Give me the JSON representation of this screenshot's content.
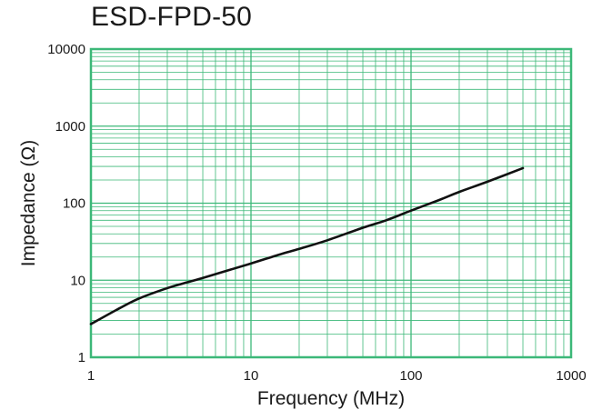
{
  "chart_data": {
    "type": "line",
    "title": "ESD-FPD-50",
    "xlabel": "Frequency (MHz)",
    "ylabel": "Impedance (Ω)",
    "x_scale": "log",
    "y_scale": "log",
    "xlim": [
      1,
      1000
    ],
    "ylim": [
      1,
      10000
    ],
    "x_ticks": [
      1,
      10,
      100,
      1000
    ],
    "x_tick_labels": [
      "1",
      "10",
      "100",
      "1000"
    ],
    "y_ticks": [
      1,
      10,
      100,
      1000,
      10000
    ],
    "y_tick_labels": [
      "1",
      "10",
      "100",
      "1000",
      "10000"
    ],
    "grid": true,
    "colors": {
      "grid": "#3cb878",
      "line": "#111111",
      "text": "#1a1a1a"
    },
    "series": [
      {
        "x": [
          1,
          1.5,
          2,
          3,
          4,
          5,
          7,
          10,
          15,
          20,
          30,
          50,
          70,
          100,
          150,
          200,
          300,
          500
        ],
        "y": [
          2.7,
          4.3,
          5.8,
          7.9,
          9.4,
          10.7,
          13.2,
          16.5,
          21.5,
          25.5,
          33,
          48,
          60,
          80,
          110,
          140,
          190,
          285
        ]
      }
    ]
  }
}
